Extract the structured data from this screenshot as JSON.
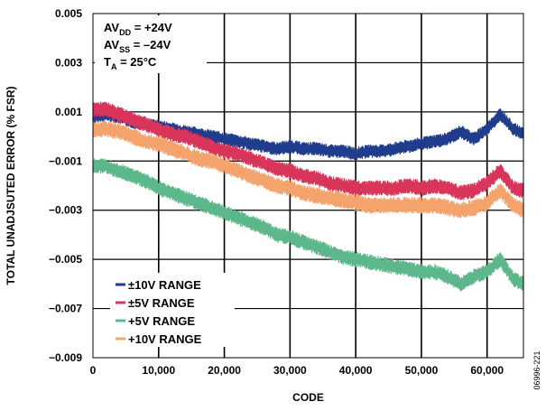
{
  "chart_data": {
    "type": "line",
    "ylabel": "TOTAL UNADJSUTED ERROR (% FSR)",
    "xlabel": "CODE",
    "xlim": [
      0,
      65535
    ],
    "ylim": [
      -0.009,
      0.005
    ],
    "x_ticks": [
      0,
      10000,
      20000,
      30000,
      40000,
      50000,
      60000
    ],
    "x_tick_labels": [
      "0",
      "10,000",
      "20,000",
      "30,000",
      "40,000",
      "50,000",
      "60,000"
    ],
    "y_ticks": [
      -0.009,
      -0.007,
      -0.005,
      -0.003,
      -0.001,
      0.001,
      0.003,
      0.005
    ],
    "y_tick_labels": [
      "−0.009",
      "−0.007",
      "−0.005",
      "−0.003",
      "−0.001",
      "0.001",
      "0.003",
      "0.005"
    ],
    "grid": true,
    "legend_position": "bottom-left",
    "annotations": {
      "line1": {
        "main": "AV",
        "sub": "DD",
        "rest": " = +24V"
      },
      "line2": {
        "main": "AV",
        "sub": "SS",
        "rest": " = –24V"
      },
      "line3": {
        "main": "T",
        "sub": "A",
        "rest": " = 25°C"
      }
    },
    "figure_id": "06996-221",
    "series": [
      {
        "name": "±10V RANGE",
        "color": "#1f3d8c",
        "x": [
          0,
          2000,
          4000,
          6000,
          8000,
          10000,
          12000,
          14000,
          16000,
          18000,
          20000,
          22000,
          24000,
          26000,
          28000,
          30000,
          32000,
          34000,
          36000,
          38000,
          40000,
          42000,
          44000,
          46000,
          48000,
          50000,
          52000,
          54000,
          56000,
          58000,
          60000,
          62000,
          64000,
          65535
        ],
        "y": [
          0.0008,
          0.0009,
          0.0008,
          0.0006,
          0.0005,
          0.0004,
          0.0003,
          0.0002,
          0.0001,
          0.0,
          -0.0001,
          -0.0002,
          -0.0003,
          -0.0004,
          -0.0005,
          -0.0004,
          -0.0005,
          -0.0005,
          -0.0006,
          -0.0006,
          -0.0007,
          -0.0006,
          -0.0006,
          -0.0005,
          -0.0004,
          -0.0003,
          -0.0002,
          -0.0001,
          0.0002,
          -0.0001,
          0.0003,
          0.0009,
          0.0003,
          0.0001
        ],
        "band": 0.00028
      },
      {
        "name": "±5V RANGE",
        "color": "#d9345a",
        "x": [
          0,
          2000,
          4000,
          6000,
          8000,
          10000,
          12000,
          14000,
          16000,
          18000,
          20000,
          22000,
          24000,
          26000,
          28000,
          30000,
          32000,
          34000,
          36000,
          38000,
          40000,
          42000,
          44000,
          46000,
          48000,
          50000,
          52000,
          54000,
          56000,
          58000,
          60000,
          62000,
          64000,
          65535
        ],
        "y": [
          0.0011,
          0.0011,
          0.0009,
          0.0007,
          0.0005,
          0.0003,
          0.0001,
          0.0,
          -0.0002,
          -0.0004,
          -0.0006,
          -0.0007,
          -0.0009,
          -0.0011,
          -0.0013,
          -0.0014,
          -0.0016,
          -0.0017,
          -0.0019,
          -0.002,
          -0.0021,
          -0.0021,
          -0.0021,
          -0.0021,
          -0.002,
          -0.0021,
          -0.002,
          -0.0021,
          -0.0023,
          -0.0022,
          -0.0019,
          -0.0014,
          -0.0021,
          -0.0022
        ],
        "band": 0.00032
      },
      {
        "name": "+5V RANGE",
        "color": "#5cb88a",
        "x": [
          0,
          2000,
          4000,
          6000,
          8000,
          10000,
          12000,
          14000,
          16000,
          18000,
          20000,
          22000,
          24000,
          26000,
          28000,
          30000,
          32000,
          34000,
          36000,
          38000,
          40000,
          42000,
          44000,
          46000,
          48000,
          50000,
          52000,
          54000,
          56000,
          58000,
          60000,
          62000,
          64000,
          65535
        ],
        "y": [
          -0.0012,
          -0.0012,
          -0.0014,
          -0.0016,
          -0.0018,
          -0.0021,
          -0.0023,
          -0.0025,
          -0.0027,
          -0.0029,
          -0.0031,
          -0.0033,
          -0.0035,
          -0.0037,
          -0.004,
          -0.0041,
          -0.0043,
          -0.0045,
          -0.0047,
          -0.0049,
          -0.005,
          -0.0051,
          -0.0052,
          -0.0053,
          -0.0054,
          -0.0055,
          -0.0055,
          -0.0057,
          -0.006,
          -0.0057,
          -0.0055,
          -0.005,
          -0.0058,
          -0.006
        ],
        "band": 0.00032
      },
      {
        "name": "+10V RANGE",
        "color": "#f5a36c",
        "x": [
          0,
          2000,
          4000,
          6000,
          8000,
          10000,
          12000,
          14000,
          16000,
          18000,
          20000,
          22000,
          24000,
          26000,
          28000,
          30000,
          32000,
          34000,
          36000,
          38000,
          40000,
          42000,
          44000,
          46000,
          48000,
          50000,
          52000,
          54000,
          56000,
          58000,
          60000,
          62000,
          64000,
          65535
        ],
        "y": [
          0.0003,
          0.0003,
          0.0002,
          0.0,
          -0.0002,
          -0.0003,
          -0.0005,
          -0.0007,
          -0.0009,
          -0.001,
          -0.0012,
          -0.0014,
          -0.0016,
          -0.0018,
          -0.002,
          -0.0021,
          -0.0023,
          -0.0024,
          -0.0025,
          -0.0026,
          -0.0027,
          -0.0028,
          -0.0028,
          -0.0028,
          -0.0028,
          -0.0028,
          -0.0028,
          -0.0029,
          -0.003,
          -0.0029,
          -0.0027,
          -0.0022,
          -0.0028,
          -0.003
        ],
        "band": 0.00034
      }
    ]
  }
}
